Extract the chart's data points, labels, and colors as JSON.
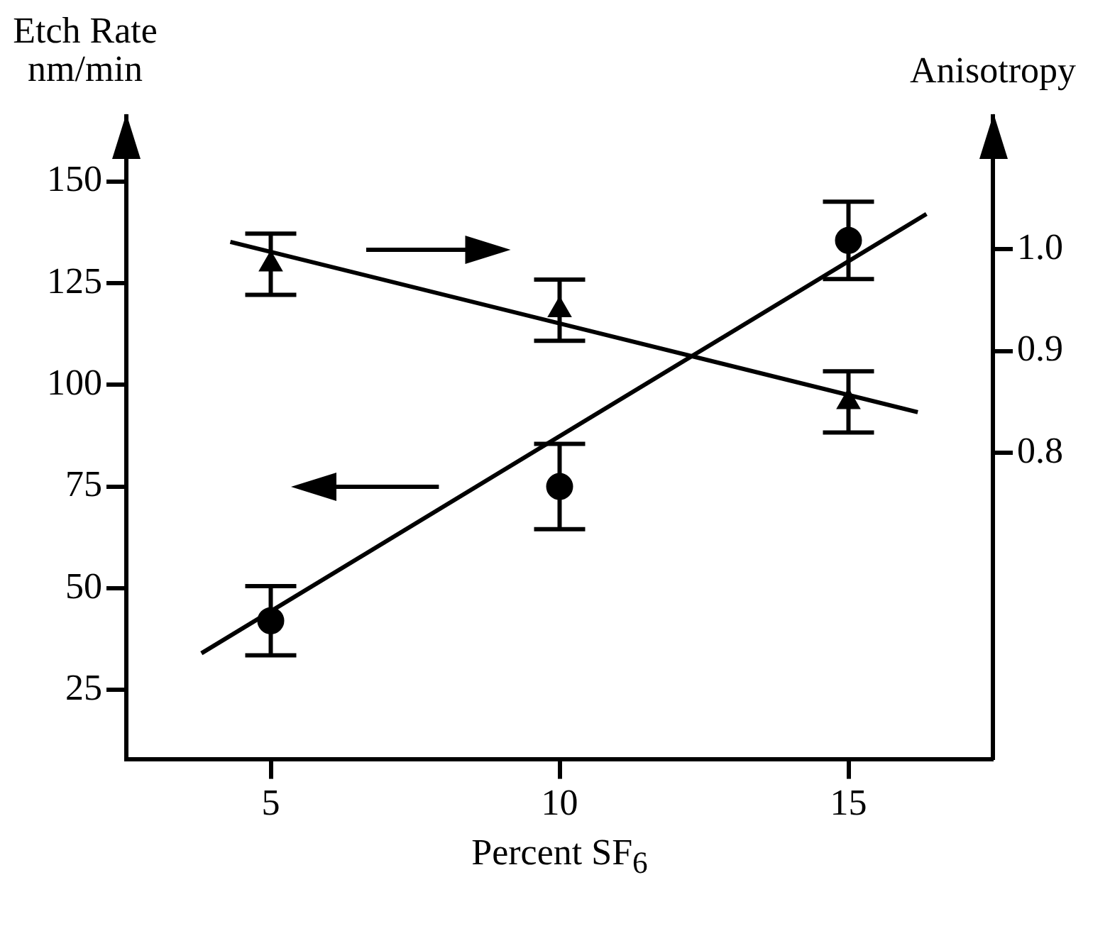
{
  "chart_data": {
    "type": "scatter",
    "xlabel": "Percent SF$_{6}$",
    "ylabel": "Etch Rate nm/min",
    "y2label": "Anisotropy",
    "xlim": [
      2.5,
      17.5
    ],
    "xticks": [
      5,
      10,
      15
    ],
    "ylim": [
      8,
      166
    ],
    "yticks": [
      25,
      50,
      75,
      100,
      125,
      150
    ],
    "y2lim": [
      0.5,
      1.13
    ],
    "y2ticks": [
      0.8,
      0.9,
      {
        "value": 1.0,
        "label": "1.0"
      }
    ],
    "grid": false,
    "legend": false,
    "series": [
      {
        "color": "#000000",
        "marker": "circle",
        "x": [
          5,
          10,
          15
        ],
        "values": [
          42,
          75,
          135.5
        ],
        "errors": [
          8.5,
          10.5,
          9.5
        ]
      },
      {
        "color": "#000000",
        "marker": "triangle",
        "axis": "y2",
        "x": [
          5,
          10,
          15
        ],
        "values": [
          0.985,
          0.94,
          0.85
        ],
        "errors": [
          0.03,
          0.03,
          0.03
        ]
      },
      {
        "type": "line",
        "color": "#000000",
        "marker": "none",
        "x": [
          3.8,
          16.35
        ],
        "values": [
          34,
          142
        ]
      },
      {
        "type": "line",
        "color": "#000000",
        "marker": "none",
        "axis": "y2",
        "x": [
          4.3,
          16.2
        ],
        "values": [
          1.007,
          0.84
        ]
      }
    ]
  }
}
